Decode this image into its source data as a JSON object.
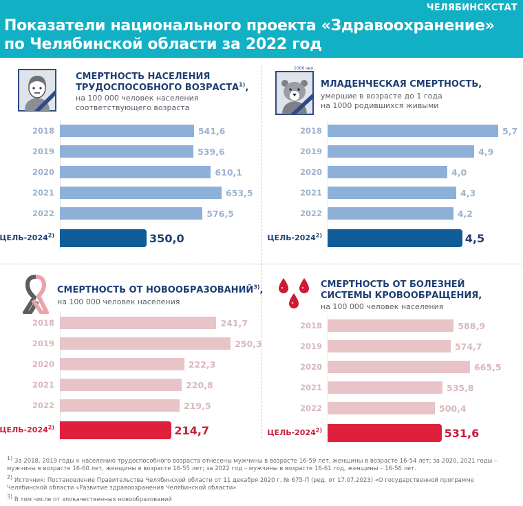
{
  "header": {
    "brand": "ЧЕЛЯБИНСКСТАТ",
    "title_line1": "Показатели национального проекта «Здравоохранение»",
    "title_line2": "по Челябинской области за 2022 год"
  },
  "colors": {
    "header_bg": "#12b0c4",
    "blue_bar": "#8db0d8",
    "blue_goal": "#0f5c96",
    "blue_title": "#1f3f73",
    "blue_year": "#9db3cf",
    "pink_bar": "#e8c3c7",
    "red_goal": "#e01f3d",
    "red_title": "#c81c3a",
    "pink_year": "#d9b7bc"
  },
  "panels": [
    {
      "icon": "person-mourning-icon",
      "title_line1": "СМЕРТНОСТЬ НАСЕЛЕНИЯ",
      "title_line2": "ТРУДОСПОСОБНОГО ВОЗРАСТА",
      "title_sup": "1)",
      "title_suffix": ",",
      "sub_line1": "на 100 000 человек населения",
      "sub_line2": "соответствующего возраста",
      "goal_label": "ЦЕЛЬ-2024",
      "goal_sup": "2)"
    },
    {
      "icon": "bear-mourning-icon",
      "icon_note": "1000 чел.",
      "title_line1": "МЛАДЕНЧЕСКАЯ СМЕРТНОСТЬ,",
      "sub_line1": "умершие в возрасте до 1 года",
      "sub_line2": "на 1000 родившихся живыми",
      "goal_label": "ЦЕЛЬ-2024",
      "goal_sup": "2)"
    },
    {
      "icon": "cancer-ribbon-icon",
      "title_line1": "СМЕРТНОСТЬ ОТ НОВООБРАЗОВАНИЙ",
      "title_sup": "3)",
      "title_suffix": ",",
      "sub_line1": "на 100 000 человек населения",
      "goal_label": "ЦЕЛЬ-2024",
      "goal_sup": "2)"
    },
    {
      "icon": "blood-drops-icon",
      "title_line1": "СМЕРТНОСТЬ ОТ БОЛЕЗНЕЙ",
      "title_line2": "СИСТЕМЫ КРОВООБРАЩЕНИЯ,",
      "sub_line1": "на 100 000 человек населения",
      "goal_label": "ЦЕЛЬ-2024",
      "goal_sup": "2)"
    }
  ],
  "chart_data": [
    {
      "type": "bar",
      "orientation": "horizontal",
      "title": "СМЕРТНОСТЬ НАСЕЛЕНИЯ ТРУДОСПОСОБНОГО ВОЗРАСТА",
      "unit": "на 100 000 человек населения соответствующего возраста",
      "categories": [
        "2018",
        "2019",
        "2020",
        "2021",
        "2022",
        "ЦЕЛЬ-2024"
      ],
      "values": [
        541.6,
        539.6,
        610.1,
        653.5,
        576.5,
        350.0
      ],
      "labels": [
        "541,6",
        "539,6",
        "610,1",
        "653,5",
        "576,5",
        "350,0"
      ]
    },
    {
      "type": "bar",
      "orientation": "horizontal",
      "title": "МЛАДЕНЧЕСКАЯ СМЕРТНОСТЬ",
      "unit": "на 1000 родившихся живыми",
      "categories": [
        "2018",
        "2019",
        "2020",
        "2021",
        "2022",
        "ЦЕЛЬ-2024"
      ],
      "values": [
        5.7,
        4.9,
        4.0,
        4.3,
        4.2,
        4.5
      ],
      "labels": [
        "5,7",
        "4,9",
        "4,0",
        "4,3",
        "4,2",
        "4,5"
      ]
    },
    {
      "type": "bar",
      "orientation": "horizontal",
      "title": "СМЕРТНОСТЬ ОТ НОВООБРАЗОВАНИЙ",
      "unit": "на 100 000 человек населения",
      "categories": [
        "2018",
        "2019",
        "2020",
        "2021",
        "2022",
        "ЦЕЛЬ-2024"
      ],
      "values": [
        241.7,
        250.3,
        222.3,
        220.8,
        219.5,
        214.7
      ],
      "labels": [
        "241,7",
        "250,3",
        "222,3",
        "220,8",
        "219,5",
        "214,7"
      ]
    },
    {
      "type": "bar",
      "orientation": "horizontal",
      "title": "СМЕРТНОСТЬ ОТ БОЛЕЗНЕЙ СИСТЕМЫ КРОВООБРАЩЕНИЯ",
      "unit": "на 100 000 человек населения",
      "categories": [
        "2018",
        "2019",
        "2020",
        "2021",
        "2022",
        "ЦЕЛЬ-2024"
      ],
      "values": [
        588.9,
        574.7,
        665.5,
        535.8,
        500.4,
        531.6
      ],
      "labels": [
        "588,9",
        "574,7",
        "665,5",
        "535,8",
        "500,4",
        "531,6"
      ]
    }
  ],
  "footnotes": [
    {
      "mark": "1)",
      "text": "За 2018, 2019 годы к населению трудоспособного возраста отнесены мужчины в возрасте 16-59 лет, женщины в возрасте 16-54 лет; за 2020, 2021 годы – мужчины в возрасте 16-60 лет, женщины в возрасте 16-55 лет; за 2022 год – мужчины в возрасте 16-61 год, женщины – 16-56 лет."
    },
    {
      "mark": "2)",
      "text": "Источник: Постановление Правительства Челябинской области от 11 декабря 2020 г. № 675-П (ред. от 17.07.2023) «О государственной программе Челябинской области «Развитие здравоохранения Челябинской области»"
    },
    {
      "mark": "3)",
      "text": "В том числе от злокачественных новообразований"
    }
  ]
}
